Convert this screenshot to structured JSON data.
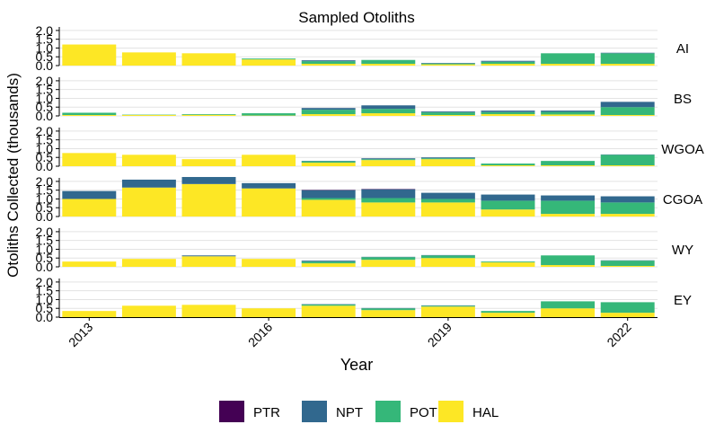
{
  "chart_data": {
    "type": "bar",
    "stacked": true,
    "faceted": true,
    "title": "Sampled Otoliths",
    "xlabel": "Year",
    "ylabel": "Otoliths Collected (thousands)",
    "years": [
      2013,
      2014,
      2015,
      2016,
      2017,
      2018,
      2019,
      2020,
      2021,
      2022
    ],
    "x_tick_labels": [
      "2013",
      "2016",
      "2019",
      "2022"
    ],
    "x_tick_years": [
      2013,
      2016,
      2019,
      2022
    ],
    "y_ticks": [
      "0.0",
      "0.5",
      "1.0",
      "1.5",
      "2.0"
    ],
    "ylim": [
      0,
      2.2
    ],
    "legend": {
      "position": "bottom",
      "items": [
        {
          "key": "PTR",
          "label": "PTR",
          "color": "#440154"
        },
        {
          "key": "NPT",
          "label": "NPT",
          "color": "#31688e"
        },
        {
          "key": "POT",
          "label": "POT",
          "color": "#35b779"
        },
        {
          "key": "HAL",
          "label": "HAL",
          "color": "#fde725"
        }
      ]
    },
    "stack_order": [
      "HAL",
      "POT",
      "NPT",
      "PTR"
    ],
    "panels": [
      {
        "label": "AI",
        "HAL": [
          1.2,
          0.75,
          0.7,
          0.35,
          0.1,
          0.1,
          0.07,
          0.1,
          0.1,
          0.1
        ],
        "POT": [
          0,
          0,
          0,
          0.05,
          0.15,
          0.22,
          0.05,
          0.12,
          0.6,
          0.6
        ],
        "NPT": [
          0,
          0,
          0,
          0,
          0.05,
          0,
          0.03,
          0.05,
          0,
          0.03
        ],
        "PTR": [
          0,
          0,
          0,
          0,
          0,
          0,
          0,
          0,
          0,
          0
        ]
      },
      {
        "label": "BS",
        "HAL": [
          0.05,
          0.05,
          0.06,
          0.02,
          0.1,
          0.15,
          0.05,
          0.1,
          0.08,
          0.05
        ],
        "POT": [
          0.13,
          0.02,
          0.04,
          0.13,
          0.25,
          0.25,
          0.15,
          0.12,
          0.15,
          0.45
        ],
        "NPT": [
          0,
          0,
          0,
          0,
          0.1,
          0.2,
          0.05,
          0.08,
          0.07,
          0.3
        ],
        "PTR": [
          0,
          0,
          0,
          0,
          0,
          0,
          0,
          0,
          0,
          0
        ]
      },
      {
        "label": "WGOA",
        "HAL": [
          0.75,
          0.65,
          0.4,
          0.65,
          0.2,
          0.35,
          0.4,
          0.05,
          0.05,
          0.05
        ],
        "POT": [
          0,
          0,
          0,
          0,
          0.08,
          0.05,
          0.05,
          0.1,
          0.25,
          0.6
        ],
        "NPT": [
          0,
          0,
          0,
          0,
          0.02,
          0.05,
          0.05,
          0,
          0,
          0.02
        ],
        "PTR": [
          0,
          0,
          0,
          0,
          0,
          0,
          0,
          0,
          0,
          0
        ]
      },
      {
        "label": "CGOA",
        "HAL": [
          1.0,
          1.65,
          1.85,
          1.6,
          0.95,
          0.8,
          0.8,
          0.4,
          0.15,
          0.15
        ],
        "POT": [
          0,
          0,
          0,
          0,
          0.1,
          0.25,
          0.2,
          0.5,
          0.75,
          0.65
        ],
        "NPT": [
          0.45,
          0.45,
          0.4,
          0.3,
          0.45,
          0.5,
          0.35,
          0.35,
          0.3,
          0.35
        ],
        "PTR": [
          0,
          0,
          0,
          0,
          0.02,
          0.02,
          0,
          0,
          0,
          0
        ]
      },
      {
        "label": "WY",
        "HAL": [
          0.3,
          0.45,
          0.6,
          0.45,
          0.2,
          0.4,
          0.5,
          0.25,
          0.1,
          0.05
        ],
        "POT": [
          0,
          0,
          0,
          0,
          0.1,
          0.15,
          0.15,
          0.05,
          0.55,
          0.3
        ],
        "NPT": [
          0,
          0,
          0.05,
          0,
          0.05,
          0.02,
          0.02,
          0,
          0,
          0.02
        ],
        "PTR": [
          0,
          0,
          0,
          0,
          0,
          0,
          0,
          0,
          0,
          0
        ]
      },
      {
        "label": "EY",
        "HAL": [
          0.35,
          0.65,
          0.7,
          0.5,
          0.65,
          0.4,
          0.6,
          0.25,
          0.5,
          0.25
        ],
        "POT": [
          0,
          0,
          0,
          0,
          0.07,
          0.1,
          0.05,
          0.1,
          0.4,
          0.6
        ],
        "NPT": [
          0,
          0,
          0,
          0,
          0.02,
          0.02,
          0.02,
          0,
          0,
          0
        ],
        "PTR": [
          0,
          0,
          0,
          0,
          0,
          0,
          0,
          0,
          0,
          0
        ]
      }
    ]
  }
}
